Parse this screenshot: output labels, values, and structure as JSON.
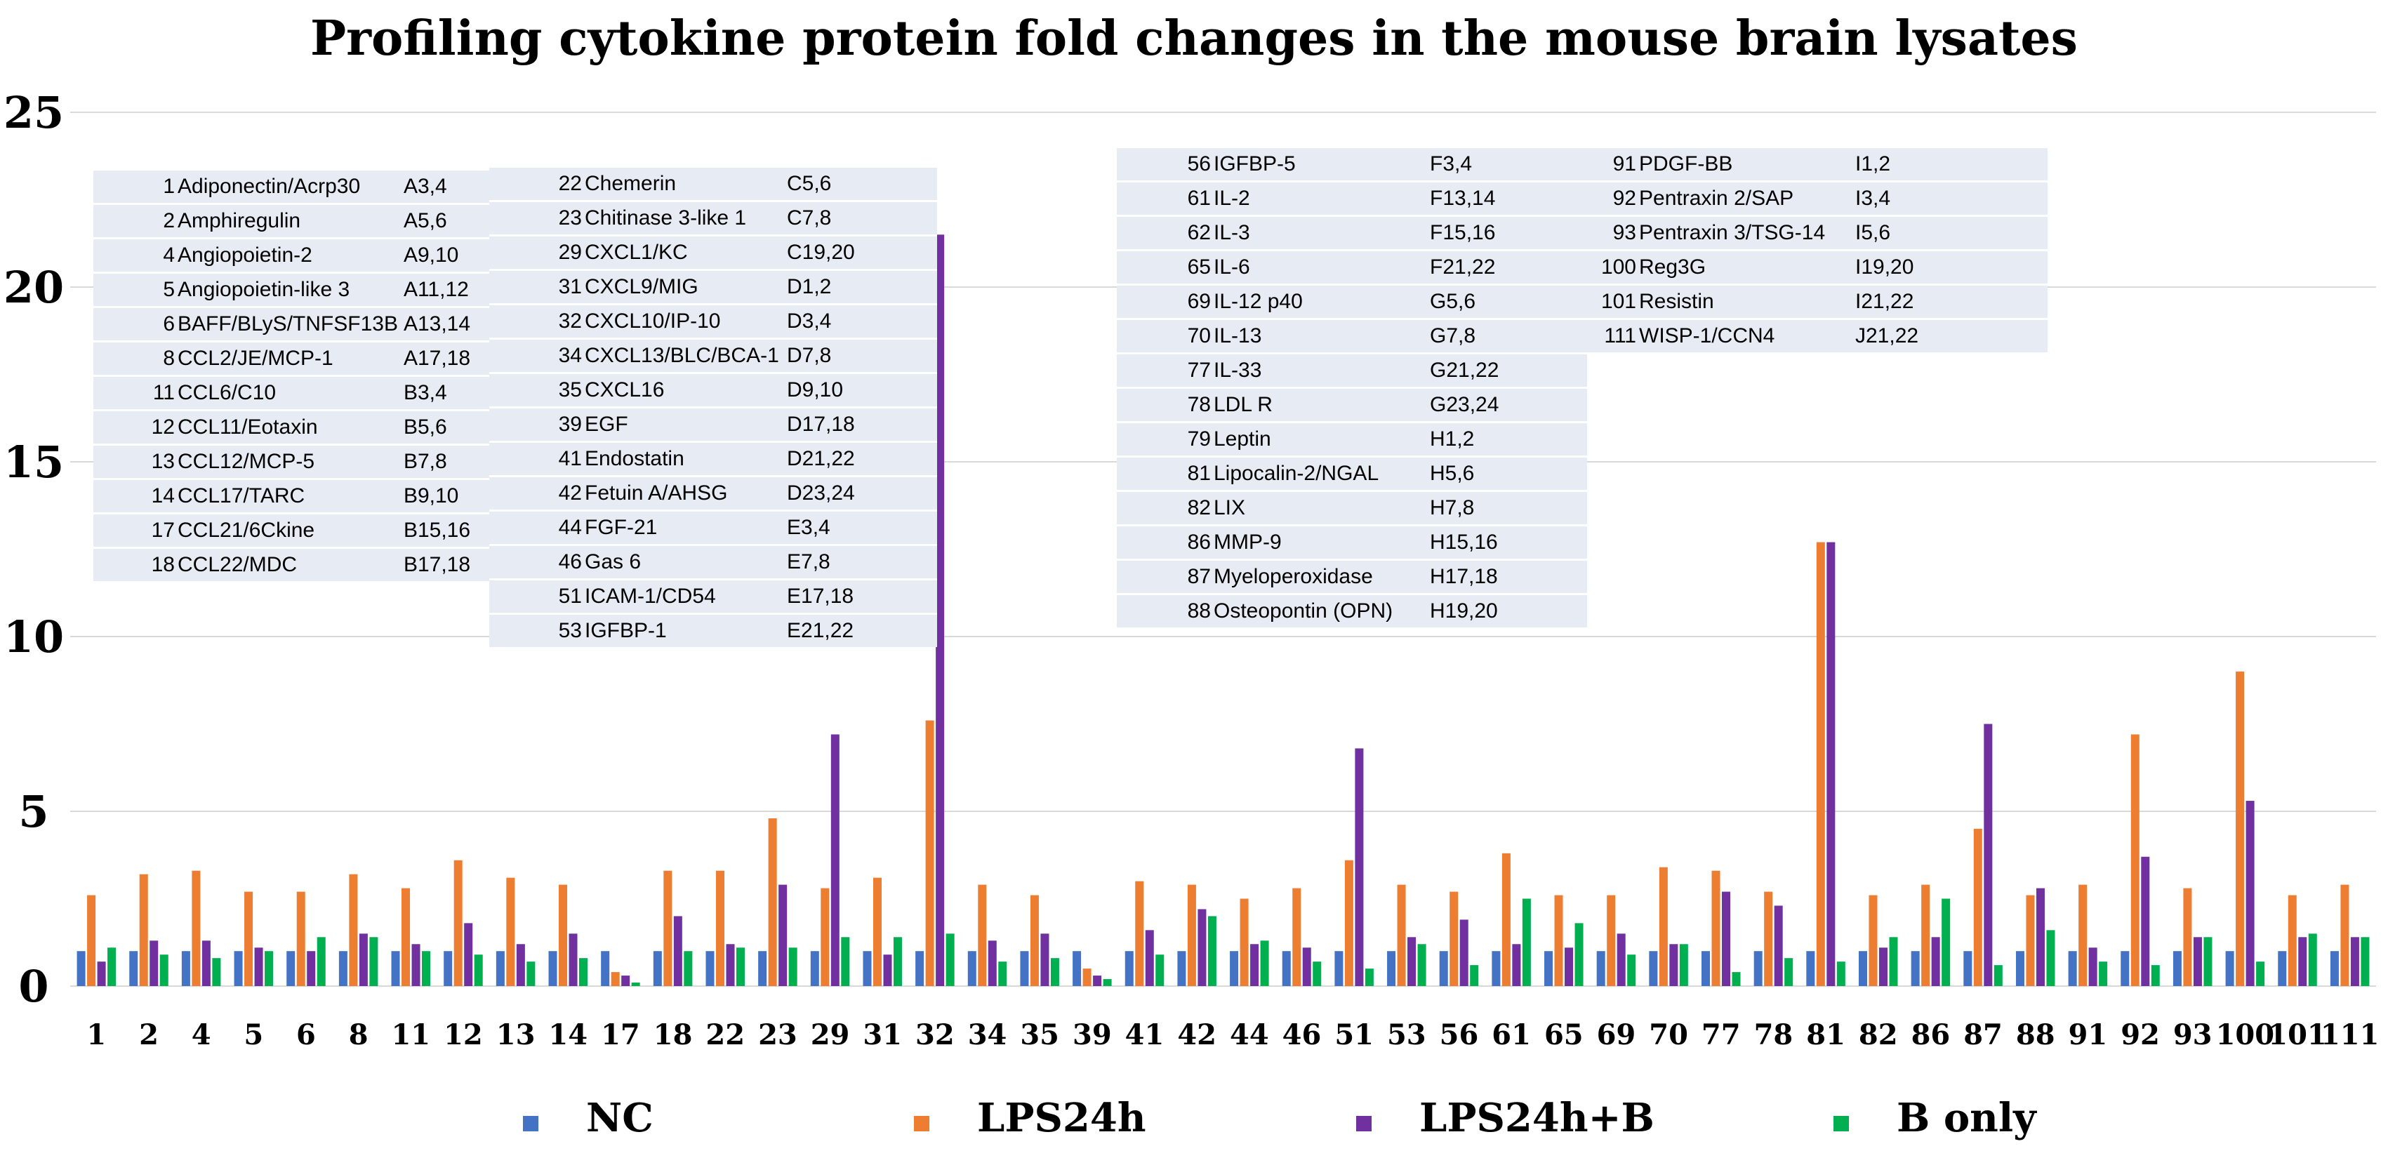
{
  "chart_data": {
    "type": "bar",
    "title": "Profiling cytokine protein fold changes in the mouse brain lysates",
    "xlabel": "",
    "ylabel": "",
    "ylim": [
      0,
      25
    ],
    "yticks": [
      0,
      5,
      10,
      15,
      20,
      25
    ],
    "grid": true,
    "legend_position": "bottom",
    "categories": [
      "1",
      "2",
      "4",
      "5",
      "6",
      "8",
      "11",
      "12",
      "13",
      "14",
      "17",
      "18",
      "22",
      "23",
      "29",
      "31",
      "32",
      "34",
      "35",
      "39",
      "41",
      "42",
      "44",
      "46",
      "51",
      "53",
      "56",
      "61",
      "65",
      "69",
      "70",
      "77",
      "78",
      "81",
      "82",
      "86",
      "87",
      "88",
      "91",
      "92",
      "93",
      "100",
      "101",
      "111"
    ],
    "series": [
      {
        "name": "NC",
        "color": "#4472c4",
        "values": [
          1,
          1,
          1,
          1,
          1,
          1,
          1,
          1,
          1,
          1,
          1,
          1,
          1,
          1,
          1,
          1,
          1,
          1,
          1,
          1,
          1,
          1,
          1,
          1,
          1,
          1,
          1,
          1,
          1,
          1,
          1,
          1,
          1,
          1,
          1,
          1,
          1,
          1,
          1,
          1,
          1,
          1,
          1,
          1
        ]
      },
      {
        "name": "LPS24h",
        "color": "#ed7d31",
        "values": [
          2.6,
          3.2,
          3.3,
          2.7,
          2.7,
          3.2,
          2.8,
          3.6,
          3.1,
          2.9,
          0.4,
          3.3,
          3.3,
          4.8,
          2.8,
          3.1,
          7.6,
          2.9,
          2.6,
          0.5,
          3.0,
          2.9,
          2.5,
          2.8,
          3.6,
          2.9,
          2.7,
          3.8,
          2.6,
          2.6,
          3.4,
          3.3,
          2.7,
          12.7,
          2.6,
          2.9,
          4.5,
          2.6,
          2.9,
          7.2,
          2.8,
          9.0,
          2.6,
          2.9
        ]
      },
      {
        "name": "LPS24h+B",
        "color": "#7030a0",
        "values": [
          0.7,
          1.3,
          1.3,
          1.1,
          1.0,
          1.5,
          1.2,
          1.8,
          1.2,
          1.5,
          0.3,
          2.0,
          1.2,
          2.9,
          7.2,
          0.9,
          21.5,
          1.3,
          1.5,
          0.3,
          1.6,
          2.2,
          1.2,
          1.1,
          6.8,
          1.4,
          1.9,
          1.2,
          1.1,
          1.5,
          1.2,
          2.7,
          2.3,
          12.7,
          1.1,
          1.4,
          7.5,
          2.8,
          1.1,
          3.7,
          1.4,
          5.3,
          1.4,
          1.4
        ]
      },
      {
        "name": "B only",
        "color": "#00b050",
        "values": [
          1.1,
          0.9,
          0.8,
          1.0,
          1.4,
          1.4,
          1.0,
          0.9,
          0.7,
          0.8,
          0.1,
          1.0,
          1.1,
          1.1,
          1.4,
          1.4,
          1.5,
          0.7,
          0.8,
          0.2,
          0.9,
          2.0,
          1.3,
          0.7,
          0.5,
          1.2,
          0.6,
          2.5,
          1.8,
          0.9,
          1.2,
          0.4,
          0.8,
          0.7,
          1.4,
          2.5,
          0.6,
          1.6,
          0.7,
          0.6,
          1.4,
          0.7,
          1.5,
          1.4
        ]
      }
    ],
    "annotation_tables": [
      {
        "id": "A",
        "rows": [
          {
            "num": "1",
            "name": "Adiponectin/Acrp30",
            "pos": "A3,4"
          },
          {
            "num": "2",
            "name": "Amphiregulin",
            "pos": "A5,6"
          },
          {
            "num": "4",
            "name": "Angiopoietin-2",
            "pos": "A9,10"
          },
          {
            "num": "5",
            "name": "Angiopoietin-like 3",
            "pos": "A11,12"
          },
          {
            "num": "6",
            "name": "BAFF/BLyS/TNFSF13B",
            "pos": "A13,14"
          },
          {
            "num": "8",
            "name": "CCL2/JE/MCP-1",
            "pos": "A17,18"
          },
          {
            "num": "11",
            "name": "CCL6/C10",
            "pos": "B3,4"
          },
          {
            "num": "12",
            "name": "CCL11/Eotaxin",
            "pos": "B5,6"
          },
          {
            "num": "13",
            "name": "CCL12/MCP-5",
            "pos": "B7,8"
          },
          {
            "num": "14",
            "name": "CCL17/TARC",
            "pos": "B9,10"
          },
          {
            "num": "17",
            "name": "CCL21/6Ckine",
            "pos": "B15,16"
          },
          {
            "num": "18",
            "name": "CCL22/MDC",
            "pos": "B17,18"
          }
        ]
      },
      {
        "id": "B",
        "rows": [
          {
            "num": "22",
            "name": "Chemerin",
            "pos": "C5,6"
          },
          {
            "num": "23",
            "name": "Chitinase 3-like 1",
            "pos": "C7,8"
          },
          {
            "num": "29",
            "name": "CXCL1/KC",
            "pos": "C19,20"
          },
          {
            "num": "31",
            "name": "CXCL9/MIG",
            "pos": "D1,2"
          },
          {
            "num": "32",
            "name": "CXCL10/IP-10",
            "pos": "D3,4"
          },
          {
            "num": "34",
            "name": "CXCL13/BLC/BCA-1",
            "pos": "D7,8"
          },
          {
            "num": "35",
            "name": "CXCL16",
            "pos": "D9,10"
          },
          {
            "num": "39",
            "name": "EGF",
            "pos": "D17,18"
          },
          {
            "num": "41",
            "name": "Endostatin",
            "pos": "D21,22"
          },
          {
            "num": "42",
            "name": "Fetuin A/AHSG",
            "pos": "D23,24"
          },
          {
            "num": "44",
            "name": "FGF-21",
            "pos": "E3,4"
          },
          {
            "num": "46",
            "name": "Gas 6",
            "pos": "E7,8"
          },
          {
            "num": "51",
            "name": "ICAM-1/CD54",
            "pos": "E17,18"
          },
          {
            "num": "53",
            "name": "IGFBP-1",
            "pos": "E21,22"
          }
        ]
      },
      {
        "id": "C",
        "rows": [
          {
            "num": "56",
            "name": "IGFBP-5",
            "pos": "F3,4"
          },
          {
            "num": "61",
            "name": "IL-2",
            "pos": "F13,14"
          },
          {
            "num": "62",
            "name": "IL-3",
            "pos": "F15,16"
          },
          {
            "num": "65",
            "name": "IL-6",
            "pos": "F21,22"
          },
          {
            "num": "69",
            "name": "IL-12 p40",
            "pos": "G5,6"
          },
          {
            "num": "70",
            "name": "IL-13",
            "pos": "G7,8"
          },
          {
            "num": "77",
            "name": "IL-33",
            "pos": "G21,22"
          },
          {
            "num": "78",
            "name": "LDL R",
            "pos": "G23,24"
          },
          {
            "num": "79",
            "name": "Leptin",
            "pos": "H1,2"
          },
          {
            "num": "81",
            "name": "Lipocalin-2/NGAL",
            "pos": "H5,6"
          },
          {
            "num": "82",
            "name": "LIX",
            "pos": "H7,8"
          },
          {
            "num": "86",
            "name": "MMP-9",
            "pos": "H15,16"
          },
          {
            "num": "87",
            "name": "Myeloperoxidase",
            "pos": "H17,18"
          },
          {
            "num": "88",
            "name": "Osteopontin (OPN)",
            "pos": "H19,20"
          }
        ]
      },
      {
        "id": "D",
        "rows": [
          {
            "num": "91",
            "name": "PDGF-BB",
            "pos": "I1,2"
          },
          {
            "num": "92",
            "name": "Pentraxin 2/SAP",
            "pos": "I3,4"
          },
          {
            "num": "93",
            "name": "Pentraxin 3/TSG-14",
            "pos": "I5,6"
          },
          {
            "num": "100",
            "name": "Reg3G",
            "pos": "I19,20"
          },
          {
            "num": "101",
            "name": "Resistin",
            "pos": "I21,22"
          },
          {
            "num": "111",
            "name": "WISP-1/CCN4",
            "pos": "J21,22"
          }
        ]
      }
    ]
  }
}
